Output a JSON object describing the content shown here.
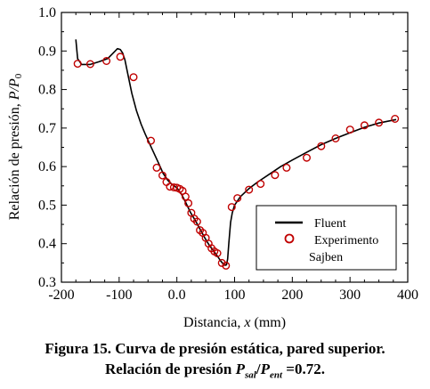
{
  "chart_data": {
    "type": "line",
    "xlabel_text": "Distancia, ",
    "xlabel_var": "x",
    "xlabel_unit": " (mm)",
    "ylabel_text": "Relación de presión, ",
    "ylabel_var": "P/P",
    "ylabel_sub": "0",
    "xlim": [
      -200,
      400
    ],
    "ylim": [
      0.3,
      1.0
    ],
    "x_ticks": [
      -200,
      -100,
      0,
      100,
      200,
      300,
      400
    ],
    "y_ticks": [
      0.3,
      0.4,
      0.5,
      0.6,
      0.7,
      0.8,
      0.9,
      1.0
    ],
    "x_tick_labels": [
      "-200",
      "-100",
      "0.0",
      "100",
      "200",
      "300",
      "400"
    ],
    "y_tick_labels": [
      "0.3",
      "0.4",
      "0.5",
      "0.6",
      "0.7",
      "0.8",
      "0.9",
      "1.0"
    ],
    "grid": false,
    "legend_position": "bottom-right",
    "series": [
      {
        "name": "Fluent",
        "kind": "line",
        "color": "#000000",
        "x": [
          -175,
          -172,
          -165,
          -150,
          -135,
          -120,
          -110,
          -103,
          -98,
          -94,
          -90,
          -85,
          -78,
          -70,
          -62,
          -55,
          -48,
          -40,
          -32,
          -24,
          -16,
          -8,
          0,
          8,
          16,
          24,
          32,
          40,
          48,
          56,
          64,
          70,
          76,
          80,
          84,
          86,
          88,
          90,
          93,
          96,
          100,
          110,
          125,
          140,
          160,
          180,
          200,
          225,
          250,
          275,
          300,
          325,
          350,
          380
        ],
        "y": [
          0.93,
          0.88,
          0.865,
          0.865,
          0.872,
          0.88,
          0.895,
          0.906,
          0.904,
          0.895,
          0.877,
          0.84,
          0.79,
          0.745,
          0.71,
          0.685,
          0.662,
          0.636,
          0.61,
          0.583,
          0.565,
          0.553,
          0.545,
          0.528,
          0.505,
          0.48,
          0.46,
          0.438,
          0.416,
          0.396,
          0.38,
          0.368,
          0.355,
          0.348,
          0.344,
          0.345,
          0.36,
          0.4,
          0.455,
          0.48,
          0.5,
          0.522,
          0.543,
          0.56,
          0.58,
          0.6,
          0.617,
          0.637,
          0.657,
          0.673,
          0.688,
          0.702,
          0.713,
          0.722
        ]
      },
      {
        "name": "Experimento Sajben",
        "kind": "markers",
        "color": "#c00000",
        "x": [
          -172,
          -150,
          -122,
          -98,
          -75,
          -45,
          -35,
          -25,
          -18,
          -12,
          -5,
          0,
          5,
          10,
          15,
          20,
          25,
          30,
          35,
          40,
          45,
          50,
          55,
          60,
          65,
          70,
          78,
          85,
          95,
          105,
          125,
          145,
          170,
          190,
          225,
          250,
          275,
          300,
          325,
          350,
          378
        ],
        "y": [
          0.867,
          0.866,
          0.874,
          0.885,
          0.832,
          0.667,
          0.597,
          0.577,
          0.56,
          0.548,
          0.546,
          0.545,
          0.542,
          0.537,
          0.522,
          0.505,
          0.48,
          0.465,
          0.457,
          0.435,
          0.428,
          0.415,
          0.4,
          0.388,
          0.38,
          0.375,
          0.35,
          0.343,
          0.495,
          0.518,
          0.54,
          0.555,
          0.578,
          0.597,
          0.623,
          0.653,
          0.673,
          0.696,
          0.707,
          0.714,
          0.724
        ]
      }
    ],
    "legend": {
      "line_label": "Fluent",
      "marker_label_1": "Experimento",
      "marker_label_2": "Sajben"
    }
  },
  "caption": {
    "line1": "Figura 15. Curva de presión estática, pared superior.",
    "line2_prefix": "Relación de presión ",
    "p1": "P",
    "sub1": "sal",
    "slash": "/",
    "p2": "P",
    "sub2": "ent",
    "line2_suffix": " =0.72."
  }
}
